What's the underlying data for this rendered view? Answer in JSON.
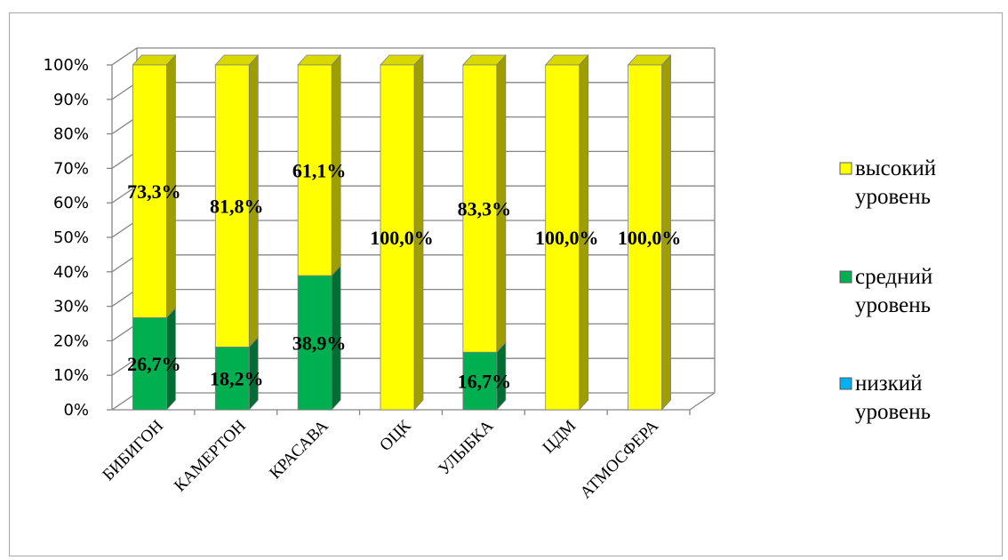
{
  "chart_data": {
    "type": "bar",
    "stacked": true,
    "percent_stacked": true,
    "three_d": true,
    "categories": [
      "БИБИГОН",
      "КАМЕРТОН",
      "КРАСАВА",
      "ОЦК",
      "УЛЫБКА",
      "ЦДМ",
      "АТМОСФЕРА"
    ],
    "series": [
      {
        "name": "низкий уровень",
        "color": "#00b0f0",
        "values": [
          0,
          0,
          0,
          0,
          0,
          0,
          0
        ],
        "labels": [
          "",
          "",
          "",
          "",
          "",
          "",
          ""
        ]
      },
      {
        "name": "средний уровень",
        "color": "#00b050",
        "values": [
          26.7,
          18.2,
          38.9,
          0,
          16.7,
          0,
          0
        ],
        "labels": [
          "26,7%",
          "18,2%",
          "38,9%",
          "",
          "16,7%",
          "",
          ""
        ]
      },
      {
        "name": "высокий уровень",
        "color": "#ffff00",
        "values": [
          73.3,
          81.8,
          61.1,
          100.0,
          83.3,
          100.0,
          100.0
        ],
        "labels": [
          "73,3%",
          "81,8%",
          "61,1%",
          "100,0%",
          "83,3%",
          "100,0%",
          "100,0%"
        ]
      }
    ],
    "legend_order": [
      "высокий уровень",
      "средний уровень",
      "низкий уровень"
    ],
    "legend_position": "right",
    "y_ticks": [
      "0%",
      "10%",
      "20%",
      "30%",
      "40%",
      "50%",
      "60%",
      "70%",
      "80%",
      "90%",
      "100%"
    ],
    "ylim": [
      0,
      100
    ],
    "grid": true
  }
}
